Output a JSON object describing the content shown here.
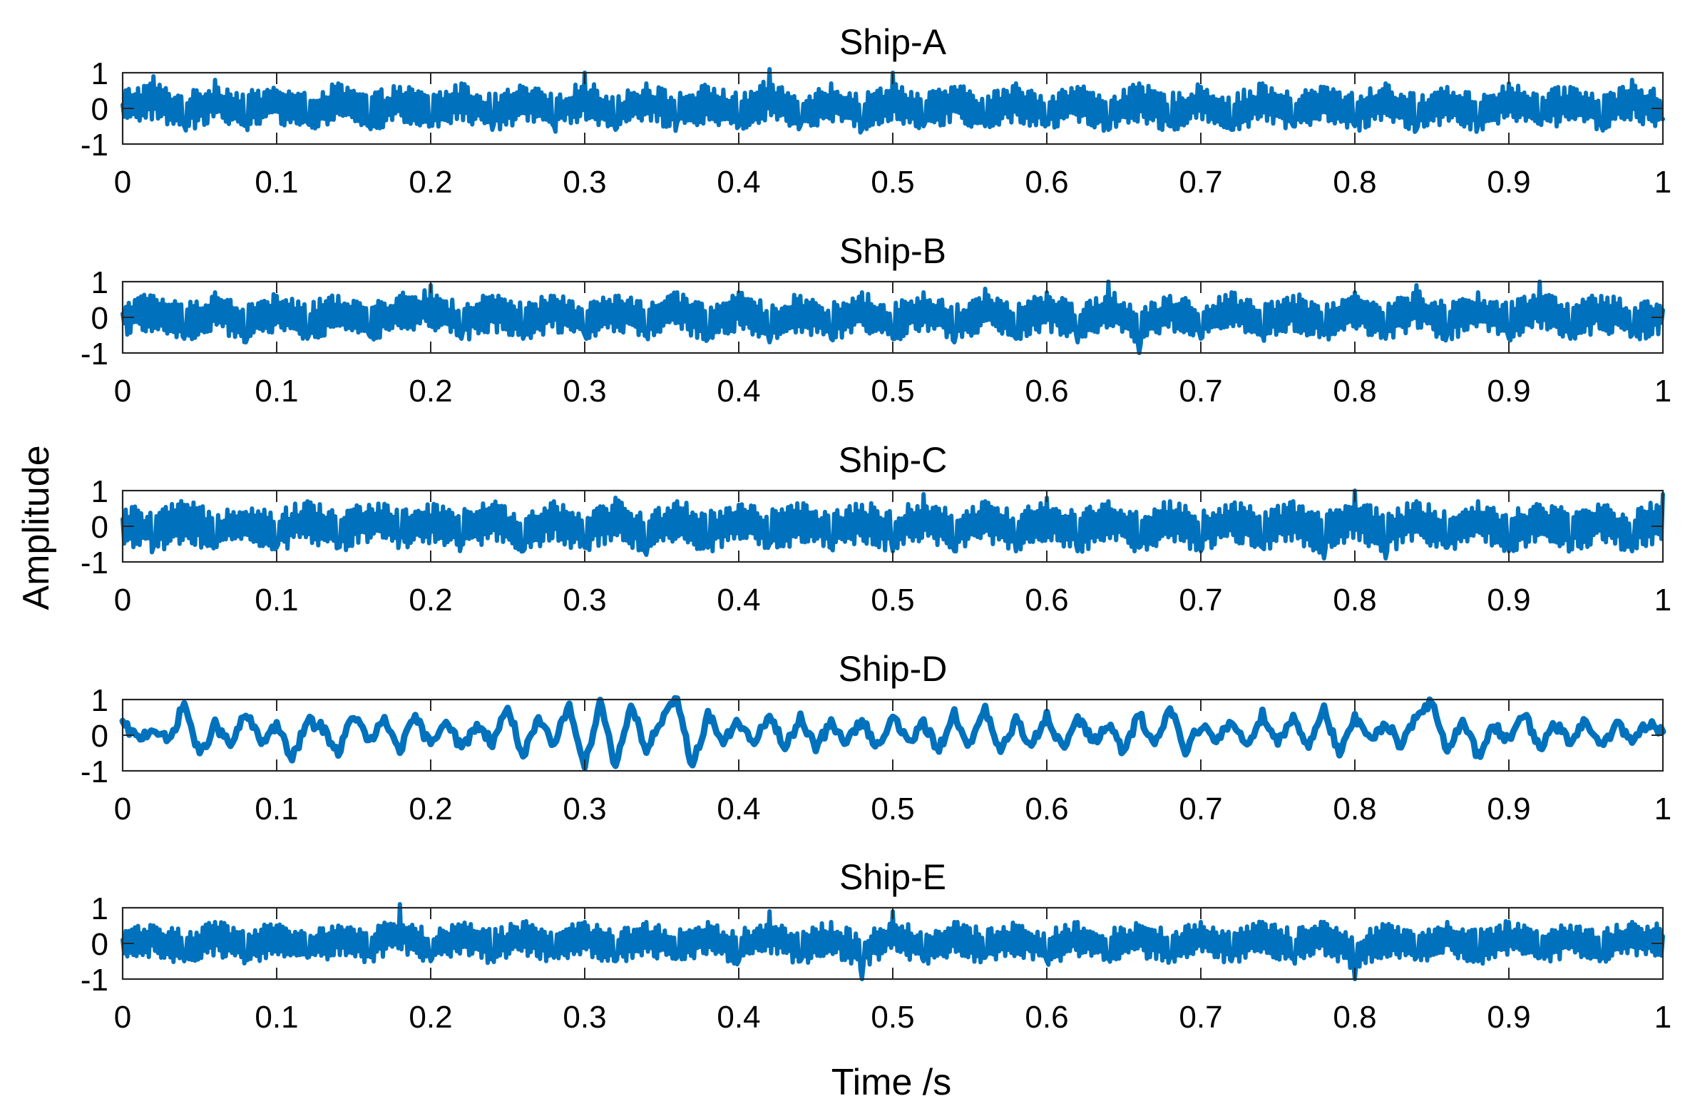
{
  "figure": {
    "ylabel": "Amplitude",
    "xlabel": "Time /s"
  },
  "chart_data": [
    {
      "type": "line",
      "title": "Ship-A",
      "xlabel": "Time /s",
      "ylabel": "Amplitude",
      "xlim": [
        0,
        1
      ],
      "ylim": [
        -1,
        1
      ],
      "x_ticks": [
        "0",
        "0.1",
        "0.2",
        "0.3",
        "0.4",
        "0.5",
        "0.6",
        "0.7",
        "0.8",
        "0.9",
        "1"
      ],
      "y_ticks": [
        "1",
        "0",
        "-1"
      ],
      "grid": false,
      "series": [
        {
          "color": "#0072BD",
          "x": [
            0,
            0.02,
            0.04,
            0.06,
            0.08,
            0.1,
            0.12,
            0.14,
            0.16,
            0.18,
            0.2,
            0.22,
            0.24,
            0.26,
            0.28,
            0.3,
            0.32,
            0.34,
            0.36,
            0.38,
            0.4,
            0.42,
            0.44,
            0.46,
            0.48,
            0.5,
            0.52,
            0.54,
            0.56,
            0.58,
            0.6,
            0.62,
            0.64,
            0.66,
            0.68,
            0.7,
            0.72,
            0.74,
            0.76,
            0.78,
            0.8,
            0.82,
            0.84,
            0.86,
            0.88,
            0.9,
            0.92,
            0.94,
            0.96,
            0.98,
            1.0
          ],
          "y": [
            0.1,
            0.9,
            -0.5,
            0.8,
            -0.3,
            0.5,
            -0.4,
            0.7,
            -0.5,
            0.6,
            -0.4,
            0.7,
            -0.6,
            0.6,
            -0.5,
            1.0,
            -0.6,
            0.7,
            -0.4,
            0.6,
            -0.5,
            1.1,
            -0.5,
            0.7,
            -0.6,
            1.0,
            -0.5,
            0.6,
            -0.5,
            0.7,
            -0.4,
            0.6,
            -0.6,
            0.7,
            -0.5,
            0.6,
            -0.6,
            0.7,
            -0.5,
            0.6,
            -0.5,
            0.7,
            -0.6,
            0.6,
            -0.5,
            0.7,
            -0.4,
            0.6,
            -0.5,
            0.8,
            -0.3
          ],
          "envelope": 0.55
        }
      ]
    },
    {
      "type": "line",
      "title": "Ship-B",
      "xlabel": "Time /s",
      "ylabel": "Amplitude",
      "xlim": [
        0,
        1
      ],
      "ylim": [
        -1,
        1
      ],
      "x_ticks": [
        "0",
        "0.1",
        "0.2",
        "0.3",
        "0.4",
        "0.5",
        "0.6",
        "0.7",
        "0.8",
        "0.9",
        "1"
      ],
      "y_ticks": [
        "1",
        "0",
        "-1"
      ],
      "grid": false,
      "series": [
        {
          "color": "#0072BD",
          "x": [
            0,
            0.02,
            0.04,
            0.06,
            0.08,
            0.1,
            0.12,
            0.14,
            0.16,
            0.18,
            0.2,
            0.22,
            0.24,
            0.26,
            0.28,
            0.3,
            0.32,
            0.34,
            0.36,
            0.38,
            0.4,
            0.42,
            0.44,
            0.46,
            0.48,
            0.5,
            0.52,
            0.54,
            0.56,
            0.58,
            0.6,
            0.62,
            0.64,
            0.66,
            0.68,
            0.7,
            0.72,
            0.74,
            0.76,
            0.78,
            0.8,
            0.82,
            0.84,
            0.86,
            0.88,
            0.9,
            0.92,
            0.94,
            0.96,
            0.98,
            1.0
          ],
          "y": [
            0.1,
            0.6,
            -0.6,
            0.7,
            -0.7,
            0.6,
            -0.6,
            0.6,
            -0.5,
            0.6,
            0.9,
            -0.6,
            0.6,
            -0.6,
            0.6,
            -0.5,
            0.6,
            -0.5,
            0.7,
            -0.6,
            0.7,
            -0.7,
            0.6,
            -0.6,
            0.7,
            -0.6,
            0.7,
            -0.7,
            0.8,
            -0.6,
            0.7,
            -0.7,
            1.0,
            -1.0,
            0.6,
            -0.6,
            0.7,
            -0.5,
            0.6,
            -0.5,
            0.7,
            -0.6,
            0.9,
            -0.5,
            0.7,
            -0.6,
            1.0,
            -0.6,
            0.6,
            -0.5,
            0.2
          ],
          "envelope": 0.55
        }
      ]
    },
    {
      "type": "line",
      "title": "Ship-C",
      "xlabel": "Time /s",
      "ylabel": "Amplitude",
      "xlim": [
        0,
        1
      ],
      "ylim": [
        -1,
        1
      ],
      "x_ticks": [
        "0",
        "0.1",
        "0.2",
        "0.3",
        "0.4",
        "0.5",
        "0.6",
        "0.7",
        "0.8",
        "0.9",
        "1"
      ],
      "y_ticks": [
        "1",
        "0",
        "-1"
      ],
      "grid": false,
      "series": [
        {
          "color": "#0072BD",
          "x": [
            0,
            0.02,
            0.04,
            0.06,
            0.08,
            0.1,
            0.12,
            0.14,
            0.16,
            0.18,
            0.2,
            0.22,
            0.24,
            0.26,
            0.28,
            0.3,
            0.32,
            0.34,
            0.36,
            0.38,
            0.4,
            0.42,
            0.44,
            0.46,
            0.48,
            0.5,
            0.52,
            0.54,
            0.56,
            0.58,
            0.6,
            0.62,
            0.64,
            0.66,
            0.68,
            0.7,
            0.72,
            0.74,
            0.76,
            0.78,
            0.8,
            0.82,
            0.84,
            0.86,
            0.88,
            0.9,
            0.92,
            0.94,
            0.96,
            0.98,
            1.0
          ],
          "y": [
            0.2,
            -0.6,
            0.6,
            -0.5,
            0.4,
            -0.6,
            0.7,
            -0.6,
            0.6,
            -0.3,
            0.3,
            -0.5,
            0.6,
            -0.7,
            0.7,
            -0.6,
            0.8,
            -0.8,
            0.7,
            -0.6,
            0.6,
            -0.5,
            0.4,
            -0.6,
            0.6,
            -0.7,
            0.9,
            -0.7,
            0.7,
            -0.7,
            0.8,
            -0.7,
            0.7,
            -0.6,
            0.7,
            -0.7,
            0.6,
            -0.6,
            0.7,
            -0.9,
            1.0,
            -0.9,
            0.7,
            -0.6,
            0.7,
            -0.7,
            0.6,
            -0.5,
            0.5,
            -0.7,
            0.9
          ],
          "envelope": 0.6
        }
      ]
    },
    {
      "type": "line",
      "title": "Ship-D",
      "xlabel": "Time /s",
      "ylabel": "Amplitude",
      "xlim": [
        0,
        1
      ],
      "ylim": [
        -1,
        1
      ],
      "x_ticks": [
        "0",
        "0.1",
        "0.2",
        "0.3",
        "0.4",
        "0.5",
        "0.6",
        "0.7",
        "0.8",
        "0.9",
        "1"
      ],
      "y_ticks": [
        "1",
        "0",
        "-1"
      ],
      "grid": false,
      "series": [
        {
          "color": "#0072BD",
          "x": [
            0,
            0.01,
            0.02,
            0.03,
            0.04,
            0.05,
            0.06,
            0.07,
            0.08,
            0.09,
            0.1,
            0.11,
            0.12,
            0.13,
            0.14,
            0.15,
            0.16,
            0.17,
            0.18,
            0.19,
            0.2,
            0.21,
            0.22,
            0.23,
            0.24,
            0.25,
            0.26,
            0.27,
            0.28,
            0.29,
            0.3,
            0.31,
            0.32,
            0.33,
            0.34,
            0.35,
            0.36,
            0.37,
            0.38,
            0.39,
            0.4,
            0.41,
            0.42,
            0.43,
            0.44,
            0.45,
            0.46,
            0.47,
            0.48,
            0.49,
            0.5,
            0.51,
            0.52,
            0.53,
            0.54,
            0.55,
            0.56,
            0.57,
            0.58,
            0.59,
            0.6,
            0.61,
            0.62,
            0.63,
            0.64,
            0.65,
            0.66,
            0.67,
            0.68,
            0.69,
            0.7,
            0.71,
            0.72,
            0.73,
            0.74,
            0.75,
            0.76,
            0.77,
            0.78,
            0.79,
            0.8,
            0.81,
            0.82,
            0.83,
            0.84,
            0.85,
            0.86,
            0.87,
            0.88,
            0.89,
            0.9,
            0.91,
            0.92,
            0.93,
            0.94,
            0.95,
            0.96,
            0.97,
            0.98,
            0.99,
            1.0
          ],
          "y": [
            0.3,
            -0.1,
            0.2,
            -0.2,
            0.9,
            -0.6,
            0.3,
            -0.3,
            0.6,
            -0.2,
            0.3,
            -0.7,
            0.4,
            0.2,
            -0.5,
            0.6,
            -0.2,
            0.4,
            -0.4,
            0.5,
            -0.3,
            0.5,
            -0.4,
            0.3,
            -0.2,
            0.8,
            -0.6,
            0.4,
            -0.3,
            0.9,
            -0.9,
            1.0,
            -0.9,
            0.9,
            -0.4,
            0.4,
            1.0,
            -0.9,
            0.6,
            -0.2,
            0.4,
            -0.3,
            0.6,
            -0.4,
            0.5,
            -0.3,
            0.3,
            -0.2,
            0.4,
            -0.3,
            0.5,
            -0.2,
            0.3,
            -0.4,
            0.6,
            -0.3,
            0.7,
            -0.5,
            0.4,
            -0.3,
            0.6,
            -0.4,
            0.5,
            -0.2,
            0.3,
            -0.5,
            0.6,
            -0.3,
            0.8,
            -0.4,
            0.3,
            -0.2,
            0.4,
            -0.3,
            0.6,
            -0.2,
            0.5,
            -0.3,
            0.8,
            -0.6,
            0.5,
            -0.2,
            0.4,
            -0.3,
            0.6,
            0.9,
            -0.5,
            0.5,
            -0.6,
            0.3,
            -0.2,
            0.6,
            -0.4,
            0.3,
            -0.2,
            0.4,
            -0.3,
            0.3,
            -0.2,
            0.3,
            0.1
          ],
          "envelope": 0.15
        }
      ]
    },
    {
      "type": "line",
      "title": "Ship-E",
      "xlabel": "Time /s",
      "ylabel": "Amplitude",
      "xlim": [
        0,
        1
      ],
      "ylim": [
        -1,
        1
      ],
      "x_ticks": [
        "0",
        "0.1",
        "0.2",
        "0.3",
        "0.4",
        "0.5",
        "0.6",
        "0.7",
        "0.8",
        "0.9",
        "1"
      ],
      "y_ticks": [
        "1",
        "0",
        "-1"
      ],
      "grid": false,
      "series": [
        {
          "color": "#0072BD",
          "x": [
            0,
            0.02,
            0.04,
            0.06,
            0.08,
            0.1,
            0.12,
            0.14,
            0.16,
            0.18,
            0.2,
            0.22,
            0.24,
            0.26,
            0.28,
            0.3,
            0.32,
            0.34,
            0.36,
            0.38,
            0.4,
            0.42,
            0.44,
            0.46,
            0.48,
            0.5,
            0.52,
            0.54,
            0.56,
            0.58,
            0.6,
            0.62,
            0.64,
            0.66,
            0.68,
            0.7,
            0.72,
            0.74,
            0.76,
            0.78,
            0.8,
            0.82,
            0.84,
            0.86,
            0.88,
            0.9,
            0.92,
            0.94,
            0.96,
            0.98,
            1.0
          ],
          "y": [
            0.1,
            0.5,
            -0.5,
            0.6,
            -0.4,
            0.5,
            -0.4,
            0.5,
            -0.3,
            1.1,
            -0.5,
            0.5,
            -0.4,
            0.6,
            -0.4,
            0.6,
            -0.5,
            0.6,
            -0.4,
            0.6,
            -0.5,
            0.9,
            -0.5,
            0.6,
            -1.0,
            0.9,
            -0.5,
            0.6,
            -0.4,
            0.5,
            -0.5,
            0.6,
            -0.4,
            0.5,
            -0.4,
            0.6,
            -0.5,
            0.6,
            -0.4,
            0.6,
            -1.0,
            0.5,
            -0.4,
            0.6,
            -0.5,
            0.6,
            -0.4,
            0.5,
            -0.4,
            0.6,
            0.2
          ],
          "envelope": 0.5
        }
      ]
    }
  ]
}
